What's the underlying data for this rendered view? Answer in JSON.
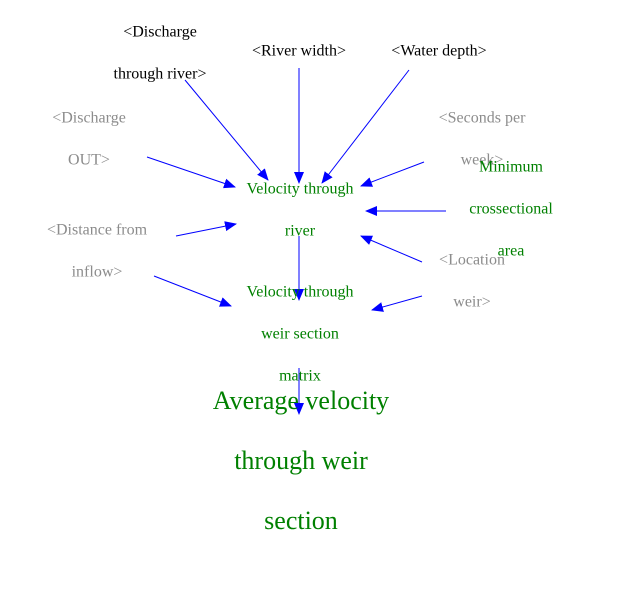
{
  "colors": {
    "arrow": "#0000ff",
    "shadow_text": "#8c8c8c",
    "input_text": "#000000",
    "variable_text": "#008000",
    "background": "#ffffff"
  },
  "nodes": {
    "discharge_through_river": {
      "lines": [
        "<Discharge",
        "through river>"
      ]
    },
    "river_width": {
      "lines": [
        "<River width>"
      ]
    },
    "water_depth": {
      "lines": [
        "<Water depth>"
      ]
    },
    "discharge_out": {
      "lines": [
        "<Discharge",
        "OUT>"
      ]
    },
    "seconds_per_week": {
      "lines": [
        "<Seconds per",
        "week>"
      ]
    },
    "velocity_through_river": {
      "lines": [
        "Velocity through",
        "river"
      ]
    },
    "minimum_crossectional_area": {
      "lines": [
        "Minimum",
        "crossectional",
        "area"
      ]
    },
    "distance_from_inflow": {
      "lines": [
        "<Distance from",
        "inflow>"
      ]
    },
    "location_weir": {
      "lines": [
        "<Location",
        "weir>"
      ]
    },
    "velocity_weir_matrix": {
      "lines": [
        "Velocity through",
        "weir section",
        "matrix"
      ]
    },
    "average_velocity_weir": {
      "lines": [
        "Average velocity",
        "through weir",
        "section"
      ]
    }
  },
  "edges": [
    {
      "from": "discharge_through_river",
      "to": "velocity_through_river"
    },
    {
      "from": "river_width",
      "to": "velocity_through_river"
    },
    {
      "from": "water_depth",
      "to": "velocity_through_river"
    },
    {
      "from": "discharge_out",
      "to": "velocity_through_river"
    },
    {
      "from": "seconds_per_week",
      "to": "velocity_through_river"
    },
    {
      "from": "minimum_crossectional_area",
      "to": "velocity_through_river"
    },
    {
      "from": "distance_from_inflow",
      "to": "velocity_through_river"
    },
    {
      "from": "location_weir",
      "to": "velocity_through_river"
    },
    {
      "from": "velocity_through_river",
      "to": "velocity_weir_matrix"
    },
    {
      "from": "distance_from_inflow",
      "to": "velocity_weir_matrix"
    },
    {
      "from": "location_weir",
      "to": "velocity_weir_matrix"
    },
    {
      "from": "velocity_weir_matrix",
      "to": "average_velocity_weir"
    }
  ]
}
